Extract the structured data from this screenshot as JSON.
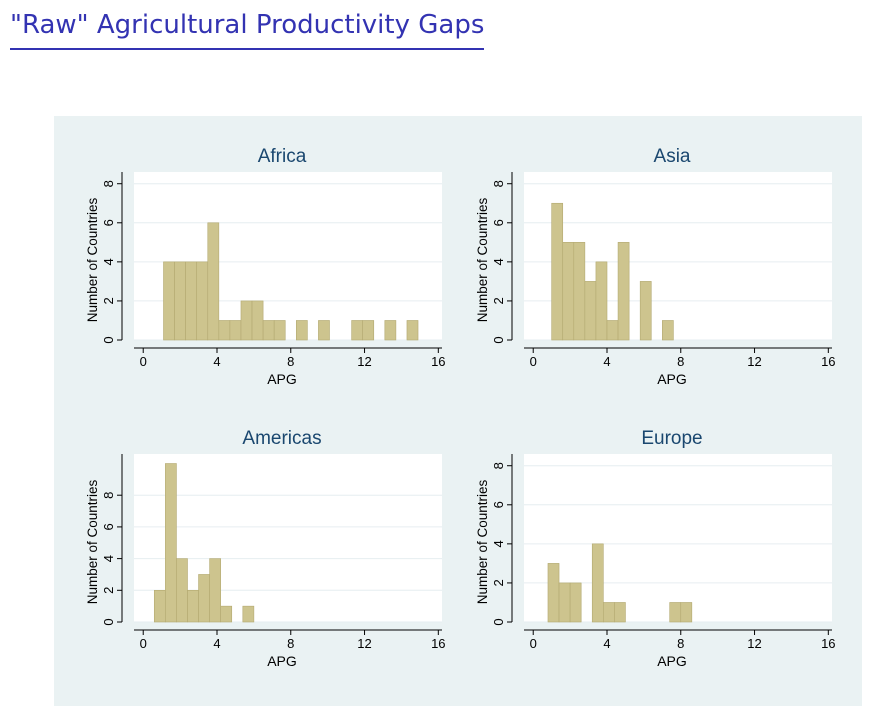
{
  "slide": {
    "title": "\"Raw\" Agricultural Productivity Gaps"
  },
  "colors": {
    "title": "#3333b2",
    "panel_background": "#eaf2f3",
    "plot_background": "#ffffff",
    "bar_fill": "#cdc48e",
    "bar_stroke": "#b3a971",
    "subplot_title": "#1a476f"
  },
  "chart_data": [
    {
      "type": "bar",
      "title": "Africa",
      "xlabel": "APG",
      "ylabel": "Number of Countries",
      "xlim": [
        -0.5,
        16.2
      ],
      "ylim": [
        0,
        8.6
      ],
      "xticks": [
        0,
        4,
        8,
        12,
        16
      ],
      "yticks": [
        0,
        2,
        4,
        6,
        8
      ],
      "bin_width": 0.6,
      "bins": [
        {
          "start": 1.1,
          "count": 4
        },
        {
          "start": 1.7,
          "count": 4
        },
        {
          "start": 2.3,
          "count": 4
        },
        {
          "start": 2.9,
          "count": 4
        },
        {
          "start": 3.5,
          "count": 6
        },
        {
          "start": 4.1,
          "count": 1
        },
        {
          "start": 4.7,
          "count": 1
        },
        {
          "start": 5.3,
          "count": 2
        },
        {
          "start": 5.9,
          "count": 2
        },
        {
          "start": 6.5,
          "count": 1
        },
        {
          "start": 7.1,
          "count": 1
        },
        {
          "start": 8.3,
          "count": 1
        },
        {
          "start": 9.5,
          "count": 1
        },
        {
          "start": 11.3,
          "count": 1
        },
        {
          "start": 11.9,
          "count": 1
        },
        {
          "start": 13.1,
          "count": 1
        },
        {
          "start": 14.3,
          "count": 1
        }
      ],
      "grid": true
    },
    {
      "type": "bar",
      "title": "Asia",
      "xlabel": "APG",
      "ylabel": "Number of Countries",
      "xlim": [
        -0.5,
        16.2
      ],
      "ylim": [
        0,
        8.6
      ],
      "xticks": [
        0,
        4,
        8,
        12,
        16
      ],
      "yticks": [
        0,
        2,
        4,
        6,
        8
      ],
      "bin_width": 0.6,
      "bins": [
        {
          "start": 1.0,
          "count": 7
        },
        {
          "start": 1.6,
          "count": 5
        },
        {
          "start": 2.2,
          "count": 5
        },
        {
          "start": 2.8,
          "count": 3
        },
        {
          "start": 3.4,
          "count": 4
        },
        {
          "start": 4.0,
          "count": 1
        },
        {
          "start": 4.6,
          "count": 5
        },
        {
          "start": 5.8,
          "count": 3
        },
        {
          "start": 7.0,
          "count": 1
        }
      ],
      "grid": true
    },
    {
      "type": "bar",
      "title": "Americas",
      "xlabel": "APG",
      "ylabel": "Number of Countries",
      "xlim": [
        -0.5,
        16.2
      ],
      "ylim": [
        0,
        10.6
      ],
      "xticks": [
        0,
        4,
        8,
        12,
        16
      ],
      "yticks": [
        0,
        2,
        4,
        6,
        8
      ],
      "bin_width": 0.6,
      "bins": [
        {
          "start": 0.6,
          "count": 2
        },
        {
          "start": 1.2,
          "count": 10
        },
        {
          "start": 1.8,
          "count": 4
        },
        {
          "start": 2.4,
          "count": 2
        },
        {
          "start": 3.0,
          "count": 3
        },
        {
          "start": 3.6,
          "count": 4
        },
        {
          "start": 4.2,
          "count": 1
        },
        {
          "start": 5.4,
          "count": 1
        }
      ],
      "grid": true
    },
    {
      "type": "bar",
      "title": "Europe",
      "xlabel": "APG",
      "ylabel": "Number of Countries",
      "xlim": [
        -0.5,
        16.2
      ],
      "ylim": [
        0,
        8.6
      ],
      "xticks": [
        0,
        4,
        8,
        12,
        16
      ],
      "yticks": [
        0,
        2,
        4,
        6,
        8
      ],
      "bin_width": 0.6,
      "bins": [
        {
          "start": 0.8,
          "count": 3
        },
        {
          "start": 1.4,
          "count": 2
        },
        {
          "start": 2.0,
          "count": 2
        },
        {
          "start": 3.2,
          "count": 4
        },
        {
          "start": 3.8,
          "count": 1
        },
        {
          "start": 4.4,
          "count": 1
        },
        {
          "start": 7.4,
          "count": 1
        },
        {
          "start": 8.0,
          "count": 1
        }
      ],
      "grid": true
    }
  ]
}
